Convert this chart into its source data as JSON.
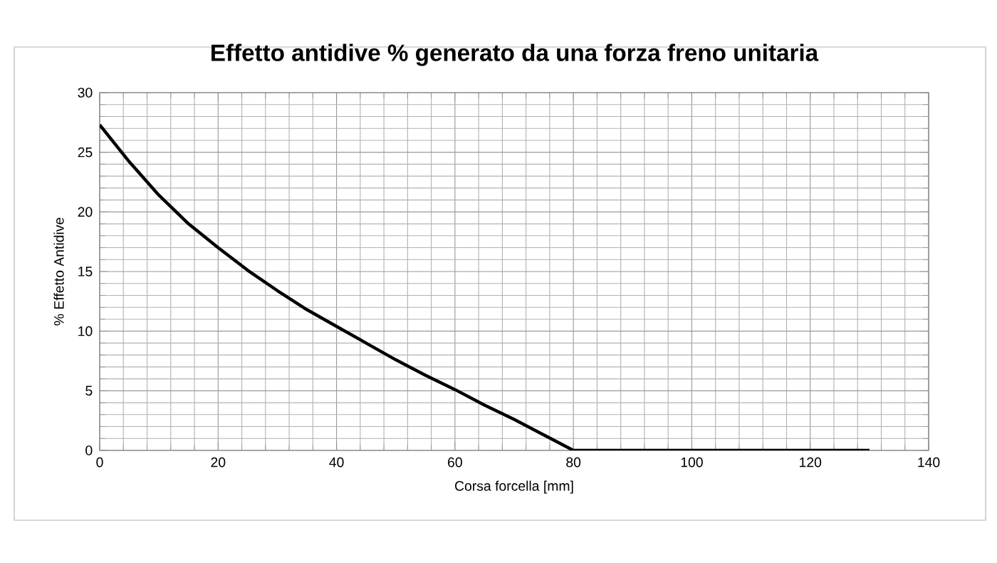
{
  "chart_data": {
    "type": "line",
    "title": "Effetto antidive % generato da una forza freno unitaria",
    "xlabel": "Corsa forcella [mm]",
    "ylabel": "% Effetto Antidive",
    "x": [
      0,
      5,
      10,
      15,
      20,
      25,
      30,
      35,
      40,
      45,
      50,
      55,
      60,
      65,
      70,
      75,
      80,
      130
    ],
    "series": [
      {
        "color": "#000000",
        "values": [
          27.3,
          24.2,
          21.4,
          19.0,
          17.0,
          15.1,
          13.4,
          11.8,
          10.4,
          9.0,
          7.6,
          6.3,
          5.1,
          3.8,
          2.6,
          1.3,
          0,
          0
        ]
      }
    ],
    "xlim": [
      0,
      140
    ],
    "xticks": [
      0,
      20,
      40,
      60,
      80,
      100,
      120,
      140
    ],
    "ylim": [
      0,
      30
    ],
    "yticks": [
      0,
      5,
      10,
      15,
      20,
      25,
      30
    ],
    "grid": true,
    "marker": "none",
    "line_style": "solid"
  }
}
